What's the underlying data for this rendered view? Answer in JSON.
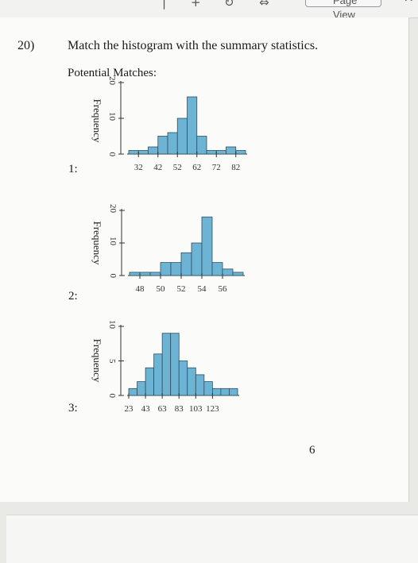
{
  "toolbar": {
    "page_view_label": "Page View"
  },
  "question": {
    "number": "20)",
    "text": "Match the histogram with the summary statistics.",
    "potential_label": "Potential Matches:"
  },
  "page_number": "6",
  "colors": {
    "bar_fill": "#6db3d3",
    "bar_stroke": "#2f4f5f",
    "page": "#fbfbf9"
  },
  "chart_data": [
    {
      "type": "bar",
      "label": "1:",
      "ylabel": "Frequency",
      "x_ticks": [
        "32",
        "42",
        "52",
        "62",
        "72",
        "82"
      ],
      "x_tick_values": [
        32,
        42,
        52,
        62,
        72,
        82
      ],
      "y_ticks": [
        "0",
        "10",
        "20"
      ],
      "y_tick_values": [
        0,
        10,
        20
      ],
      "ylim": [
        0,
        20
      ],
      "bin_start": 27,
      "bin_width": 5,
      "values": [
        1,
        1,
        2,
        5,
        6,
        10,
        16,
        5,
        1,
        1,
        2,
        1
      ]
    },
    {
      "type": "bar",
      "label": "2:",
      "ylabel": "Frequency",
      "x_ticks": [
        "48",
        "50",
        "52",
        "54",
        "56"
      ],
      "x_tick_values": [
        48,
        50,
        52,
        54,
        56
      ],
      "y_ticks": [
        "0",
        "10",
        "20"
      ],
      "y_tick_values": [
        0,
        10,
        20
      ],
      "ylim": [
        0,
        20
      ],
      "bin_start": 47,
      "bin_width": 1,
      "values": [
        1,
        1,
        1,
        4,
        4,
        7,
        10,
        18,
        4,
        2,
        1
      ]
    },
    {
      "type": "bar",
      "label": "3:",
      "ylabel": "Frequency",
      "x_ticks": [
        "23",
        "43",
        "63",
        "83",
        "103",
        "123"
      ],
      "x_tick_values": [
        23,
        43,
        63,
        83,
        103,
        123
      ],
      "y_ticks": [
        "0",
        "5",
        "10"
      ],
      "y_tick_values": [
        0,
        5,
        10
      ],
      "ylim": [
        0,
        10
      ],
      "bin_start": 23,
      "bin_width": 10,
      "values": [
        1,
        2,
        4,
        6,
        9,
        9,
        5,
        4,
        3,
        2,
        1,
        1,
        1
      ]
    }
  ]
}
